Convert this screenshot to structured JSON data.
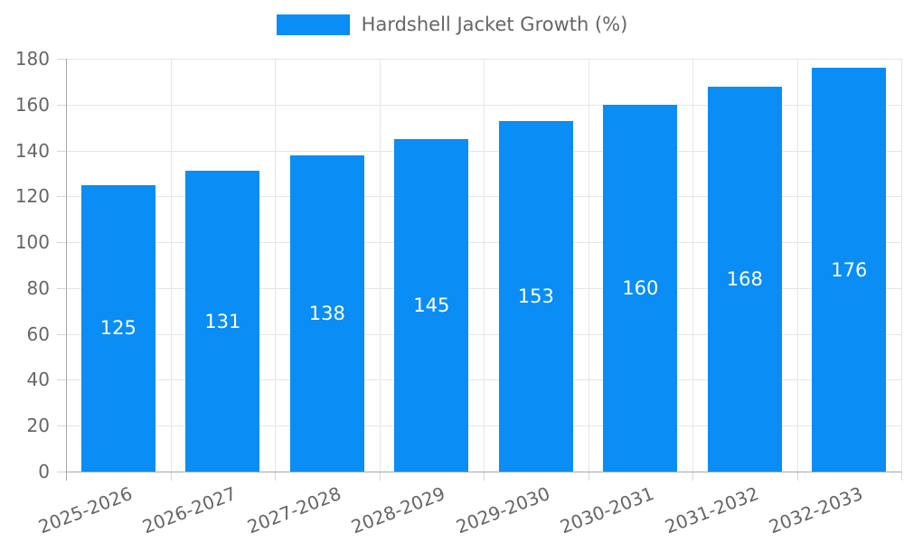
{
  "chart_data": {
    "type": "bar",
    "title": "",
    "legend_label": "Hardshell Jacket Growth (%)",
    "legend_position": "top",
    "categories": [
      "2025-2026",
      "2026-2027",
      "2027-2028",
      "2028-2029",
      "2029-2030",
      "2030-2031",
      "2031-2032",
      "2032-2033"
    ],
    "values": [
      125,
      131,
      138,
      145,
      153,
      160,
      168,
      176
    ],
    "value_labels": [
      "125",
      "131",
      "138",
      "145",
      "153",
      "160",
      "168",
      "176"
    ],
    "xlabel": "",
    "ylabel": "",
    "ylim": [
      0,
      180
    ],
    "y_ticks": [
      0,
      20,
      40,
      60,
      80,
      100,
      120,
      140,
      160,
      180
    ],
    "grid": "on",
    "colors": {
      "bar": "#0a8df4",
      "value_text": "#ffffff",
      "axis_text": "#666666",
      "gridline": "#e6e6e6",
      "axis_line": "#a6a6a6",
      "tick_mark": "#d6d6d6",
      "background": "#ffffff"
    }
  }
}
